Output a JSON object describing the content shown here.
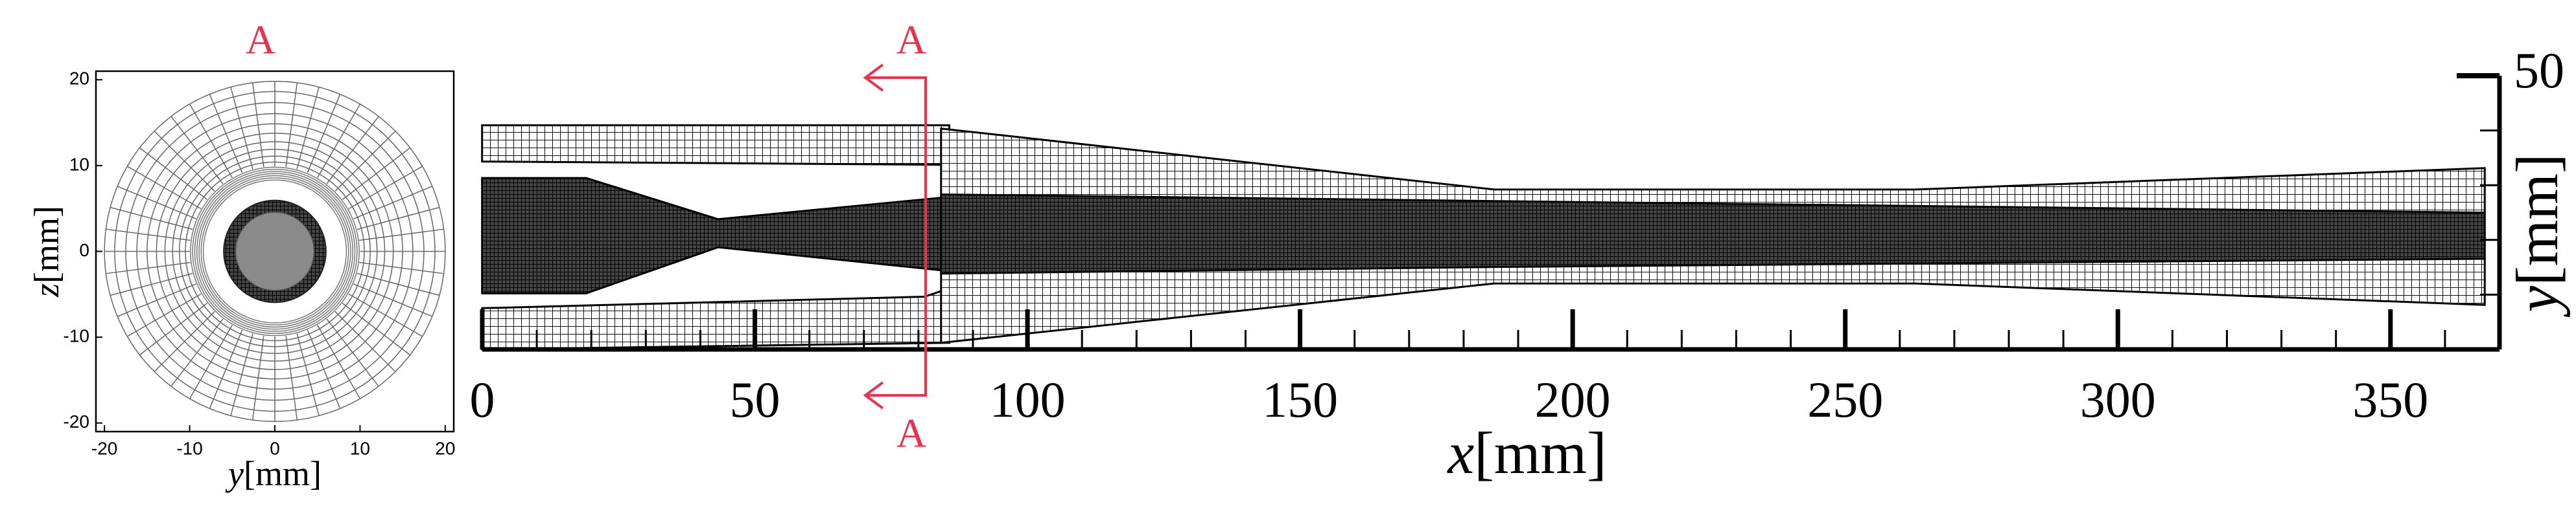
{
  "left_panel": {
    "section_label": "A",
    "xlabel": {
      "var": "y",
      "unit": "[mm]"
    },
    "ylabel": {
      "var": "z",
      "unit": "[mm]"
    },
    "xlim": [
      -21,
      21
    ],
    "ylim": [
      -21,
      21
    ],
    "xticks": [
      -20,
      -10,
      0,
      10,
      20
    ],
    "yticks": [
      -20,
      -10,
      0,
      10,
      20
    ]
  },
  "right_panel": {
    "section_label_top": "A",
    "section_label_bottom": "A",
    "xlabel": {
      "var": "x",
      "unit": "[mm]"
    },
    "ylabel": {
      "var": "y",
      "unit": "[mm]"
    },
    "xlim": [
      0,
      370
    ],
    "ylim": [
      0,
      50
    ],
    "xticks": [
      0,
      50,
      100,
      150,
      200,
      250,
      300,
      350
    ],
    "xticks_minor": [
      10,
      20,
      30,
      40,
      60,
      70,
      80,
      90,
      110,
      120,
      130,
      140,
      160,
      170,
      180,
      190,
      210,
      220,
      230,
      240,
      260,
      270,
      280,
      290,
      310,
      320,
      330,
      340,
      360
    ],
    "yticks": [
      50
    ],
    "yticks_minor": [
      10,
      20,
      30,
      40
    ]
  }
}
